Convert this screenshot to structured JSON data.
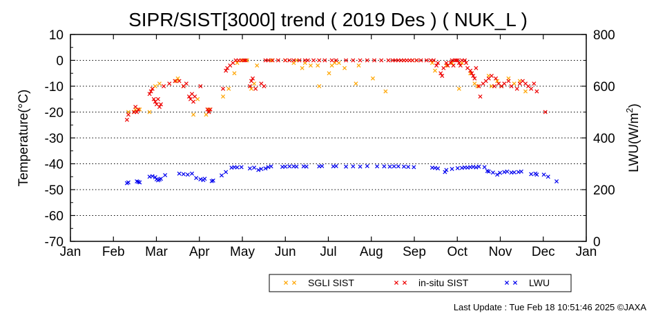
{
  "chart_data": {
    "type": "scatter",
    "title": "SIPR/SIST[3000] trend ( 2019 Des ) ( NUK_L )",
    "ylabel": "Temperature(°C)",
    "y2label_main": "LWU(W/m",
    "y2label_sup": "2",
    "y2label_end": ")",
    "ylim": [
      -70,
      10
    ],
    "y2lim": [
      0,
      800
    ],
    "yticks": [
      "10",
      "0",
      "-10",
      "-20",
      "-30",
      "-40",
      "-50",
      "-60",
      "-70"
    ],
    "y2ticks": [
      "800",
      "600",
      "400",
      "200",
      "0"
    ],
    "xticks": [
      "Jan",
      "Feb",
      "Mar",
      "Apr",
      "May",
      "Jun",
      "Jul",
      "Aug",
      "Sep",
      "Oct",
      "Nov",
      "Dec",
      "Jan"
    ],
    "grid": "horizontal dotted",
    "legend_position": "bottom",
    "series": [
      {
        "name": "SGLI SIST",
        "color": "#ffa500",
        "axis": "left",
        "points": [
          [
            41,
            -20
          ],
          [
            45,
            -20
          ],
          [
            46,
            -19
          ],
          [
            49,
            -19
          ],
          [
            56,
            -20
          ],
          [
            58,
            -11
          ],
          [
            60,
            -10
          ],
          [
            63,
            -9
          ],
          [
            75,
            -8
          ],
          [
            76,
            -7
          ],
          [
            80,
            -10
          ],
          [
            87,
            -21
          ],
          [
            90,
            -15
          ],
          [
            96,
            -21
          ],
          [
            98,
            -19
          ],
          [
            108,
            -14
          ],
          [
            112,
            -11
          ],
          [
            116,
            -5
          ],
          [
            118,
            -1
          ],
          [
            122,
            0
          ],
          [
            125,
            0
          ],
          [
            128,
            -11
          ],
          [
            130,
            -9
          ],
          [
            132,
            -2
          ],
          [
            142,
            0
          ],
          [
            152,
            0
          ],
          [
            158,
            -1
          ],
          [
            160,
            0
          ],
          [
            164,
            -3
          ],
          [
            166,
            -1
          ],
          [
            170,
            -2
          ],
          [
            175,
            -2
          ],
          [
            176,
            -10
          ],
          [
            183,
            -5
          ],
          [
            185,
            -2
          ],
          [
            187,
            -1
          ],
          [
            190,
            -1
          ],
          [
            194,
            -3
          ],
          [
            202,
            -9
          ],
          [
            204,
            -2
          ],
          [
            214,
            -7
          ],
          [
            223,
            -12
          ],
          [
            236,
            0
          ],
          [
            242,
            0
          ],
          [
            245,
            0
          ],
          [
            256,
            -1
          ],
          [
            258,
            -4
          ],
          [
            266,
            -2
          ],
          [
            270,
            -1
          ],
          [
            275,
            -11
          ],
          [
            277,
            -1
          ],
          [
            283,
            -5
          ],
          [
            286,
            -9
          ],
          [
            288,
            -10
          ],
          [
            296,
            -6
          ],
          [
            298,
            -10
          ],
          [
            302,
            -8
          ],
          [
            305,
            -10
          ],
          [
            310,
            -7
          ],
          [
            314,
            -9
          ],
          [
            318,
            -8
          ],
          [
            322,
            -12
          ]
        ]
      },
      {
        "name": "in-situ SIST",
        "color": "#ee0000",
        "axis": "left",
        "points": [
          [
            40,
            -23
          ],
          [
            41,
            -21
          ],
          [
            45,
            -20
          ],
          [
            46,
            -18
          ],
          [
            47,
            -20
          ],
          [
            48,
            -19
          ],
          [
            56,
            -13
          ],
          [
            57,
            -12
          ],
          [
            58,
            -11
          ],
          [
            59,
            -15
          ],
          [
            60,
            -16
          ],
          [
            61,
            -17
          ],
          [
            62,
            -15
          ],
          [
            63,
            -18
          ],
          [
            64,
            -17
          ],
          [
            66,
            -10
          ],
          [
            70,
            -9
          ],
          [
            74,
            -8
          ],
          [
            77,
            -8
          ],
          [
            80,
            -10
          ],
          [
            82,
            -9
          ],
          [
            84,
            -14
          ],
          [
            85,
            -15
          ],
          [
            86,
            -13
          ],
          [
            87,
            -16
          ],
          [
            88,
            -14
          ],
          [
            92,
            -10
          ],
          [
            97,
            -19
          ],
          [
            98,
            -20
          ],
          [
            99,
            -19
          ],
          [
            108,
            -11
          ],
          [
            110,
            -4
          ],
          [
            111,
            -3
          ],
          [
            113,
            -2
          ],
          [
            115,
            -1
          ],
          [
            117,
            0
          ],
          [
            119,
            0
          ],
          [
            121,
            0
          ],
          [
            123,
            0
          ],
          [
            124,
            0
          ],
          [
            127,
            -10
          ],
          [
            128,
            -8
          ],
          [
            129,
            -7
          ],
          [
            131,
            -11
          ],
          [
            135,
            -9
          ],
          [
            137,
            -10
          ],
          [
            138,
            0
          ],
          [
            140,
            0
          ],
          [
            143,
            0
          ],
          [
            147,
            0
          ],
          [
            152,
            0
          ],
          [
            155,
            0
          ],
          [
            158,
            0
          ],
          [
            162,
            0
          ],
          [
            166,
            0
          ],
          [
            168,
            0
          ],
          [
            172,
            0
          ],
          [
            176,
            0
          ],
          [
            180,
            0
          ],
          [
            185,
            0
          ],
          [
            188,
            0
          ],
          [
            195,
            0
          ],
          [
            200,
            0
          ],
          [
            205,
            0
          ],
          [
            210,
            0
          ],
          [
            215,
            0
          ],
          [
            220,
            0
          ],
          [
            225,
            0
          ],
          [
            228,
            0
          ],
          [
            230,
            0
          ],
          [
            232,
            0
          ],
          [
            234,
            0
          ],
          [
            236,
            0
          ],
          [
            238,
            0
          ],
          [
            240,
            0
          ],
          [
            242,
            0
          ],
          [
            245,
            0
          ],
          [
            248,
            0
          ],
          [
            252,
            0
          ],
          [
            255,
            0
          ],
          [
            257,
            0
          ],
          [
            259,
            -2
          ],
          [
            260,
            -1
          ],
          [
            262,
            -5
          ],
          [
            263,
            -6
          ],
          [
            264,
            -3
          ],
          [
            266,
            -1
          ],
          [
            267,
            -2
          ],
          [
            269,
            -1
          ],
          [
            270,
            0
          ],
          [
            271,
            -2
          ],
          [
            272,
            0
          ],
          [
            273,
            0
          ],
          [
            274,
            0
          ],
          [
            275,
            -1
          ],
          [
            276,
            -2
          ],
          [
            277,
            0
          ],
          [
            279,
            0
          ],
          [
            280,
            -1
          ],
          [
            281,
            -3
          ],
          [
            283,
            -4
          ],
          [
            284,
            -5
          ],
          [
            285,
            -6
          ],
          [
            286,
            -7
          ],
          [
            287,
            -3
          ],
          [
            289,
            -10
          ],
          [
            290,
            -14
          ],
          [
            292,
            -9
          ],
          [
            294,
            -8
          ],
          [
            296,
            -7
          ],
          [
            298,
            -6
          ],
          [
            300,
            -10
          ],
          [
            301,
            -7
          ],
          [
            303,
            -9
          ],
          [
            305,
            -10
          ],
          [
            307,
            -9
          ],
          [
            310,
            -8
          ],
          [
            312,
            -10
          ],
          [
            316,
            -11
          ],
          [
            318,
            -9
          ],
          [
            320,
            -8
          ],
          [
            322,
            -9
          ],
          [
            324,
            -10
          ],
          [
            326,
            -11
          ],
          [
            328,
            -9
          ],
          [
            330,
            -12
          ],
          [
            336,
            -20
          ]
        ]
      },
      {
        "name": "LWU",
        "color": "#0000ee",
        "axis": "right",
        "points": [
          [
            40,
            225
          ],
          [
            41,
            228
          ],
          [
            47,
            232
          ],
          [
            48,
            230
          ],
          [
            49,
            228
          ],
          [
            56,
            250
          ],
          [
            58,
            252
          ],
          [
            60,
            248
          ],
          [
            61,
            240
          ],
          [
            62,
            236
          ],
          [
            63,
            239
          ],
          [
            64,
            242
          ],
          [
            67,
            256
          ],
          [
            77,
            262
          ],
          [
            80,
            260
          ],
          [
            83,
            258
          ],
          [
            86,
            262
          ],
          [
            89,
            245
          ],
          [
            92,
            240
          ],
          [
            94,
            237
          ],
          [
            95,
            242
          ],
          [
            100,
            233
          ],
          [
            101,
            235
          ],
          [
            107,
            255
          ],
          [
            110,
            268
          ],
          [
            114,
            285
          ],
          [
            116,
            287
          ],
          [
            118,
            286
          ],
          [
            121,
            287
          ],
          [
            127,
            282
          ],
          [
            130,
            285
          ],
          [
            133,
            276
          ],
          [
            135,
            280
          ],
          [
            138,
            282
          ],
          [
            140,
            287
          ],
          [
            142,
            290
          ],
          [
            150,
            288
          ],
          [
            152,
            289
          ],
          [
            155,
            290
          ],
          [
            158,
            290
          ],
          [
            160,
            289
          ],
          [
            165,
            290
          ],
          [
            167,
            289
          ],
          [
            176,
            290
          ],
          [
            178,
            291
          ],
          [
            186,
            290
          ],
          [
            188,
            291
          ],
          [
            195,
            289
          ],
          [
            200,
            290
          ],
          [
            205,
            289
          ],
          [
            210,
            291
          ],
          [
            217,
            290
          ],
          [
            222,
            290
          ],
          [
            226,
            289
          ],
          [
            229,
            290
          ],
          [
            232,
            290
          ],
          [
            236,
            289
          ],
          [
            239,
            288
          ],
          [
            243,
            287
          ],
          [
            256,
            285
          ],
          [
            258,
            284
          ],
          [
            260,
            282
          ],
          [
            265,
            268
          ],
          [
            266,
            276
          ],
          [
            270,
            280
          ],
          [
            274,
            283
          ],
          [
            277,
            284
          ],
          [
            279,
            286
          ],
          [
            281,
            285
          ],
          [
            283,
            287
          ],
          [
            285,
            288
          ],
          [
            287,
            286
          ],
          [
            289,
            289
          ],
          [
            293,
            287
          ],
          [
            295,
            272
          ],
          [
            296,
            270
          ],
          [
            299,
            266
          ],
          [
            302,
            258
          ],
          [
            304,
            265
          ],
          [
            307,
            268
          ],
          [
            309,
            270
          ],
          [
            312,
            266
          ],
          [
            314,
            267
          ],
          [
            317,
            268
          ],
          [
            319,
            270
          ],
          [
            326,
            260
          ],
          [
            329,
            262
          ],
          [
            330,
            258
          ],
          [
            335,
            258
          ],
          [
            338,
            250
          ],
          [
            344,
            232
          ]
        ]
      }
    ]
  },
  "legend": {
    "items": [
      {
        "label": "SGLI SIST",
        "color": "#ffa500"
      },
      {
        "label": "in-situ SIST",
        "color": "#ee0000"
      },
      {
        "label": "LWU",
        "color": "#0000ee"
      }
    ]
  },
  "footer": {
    "last_update": "Last Update : Tue Feb 18 10:51:46 2025 ©JAXA"
  }
}
